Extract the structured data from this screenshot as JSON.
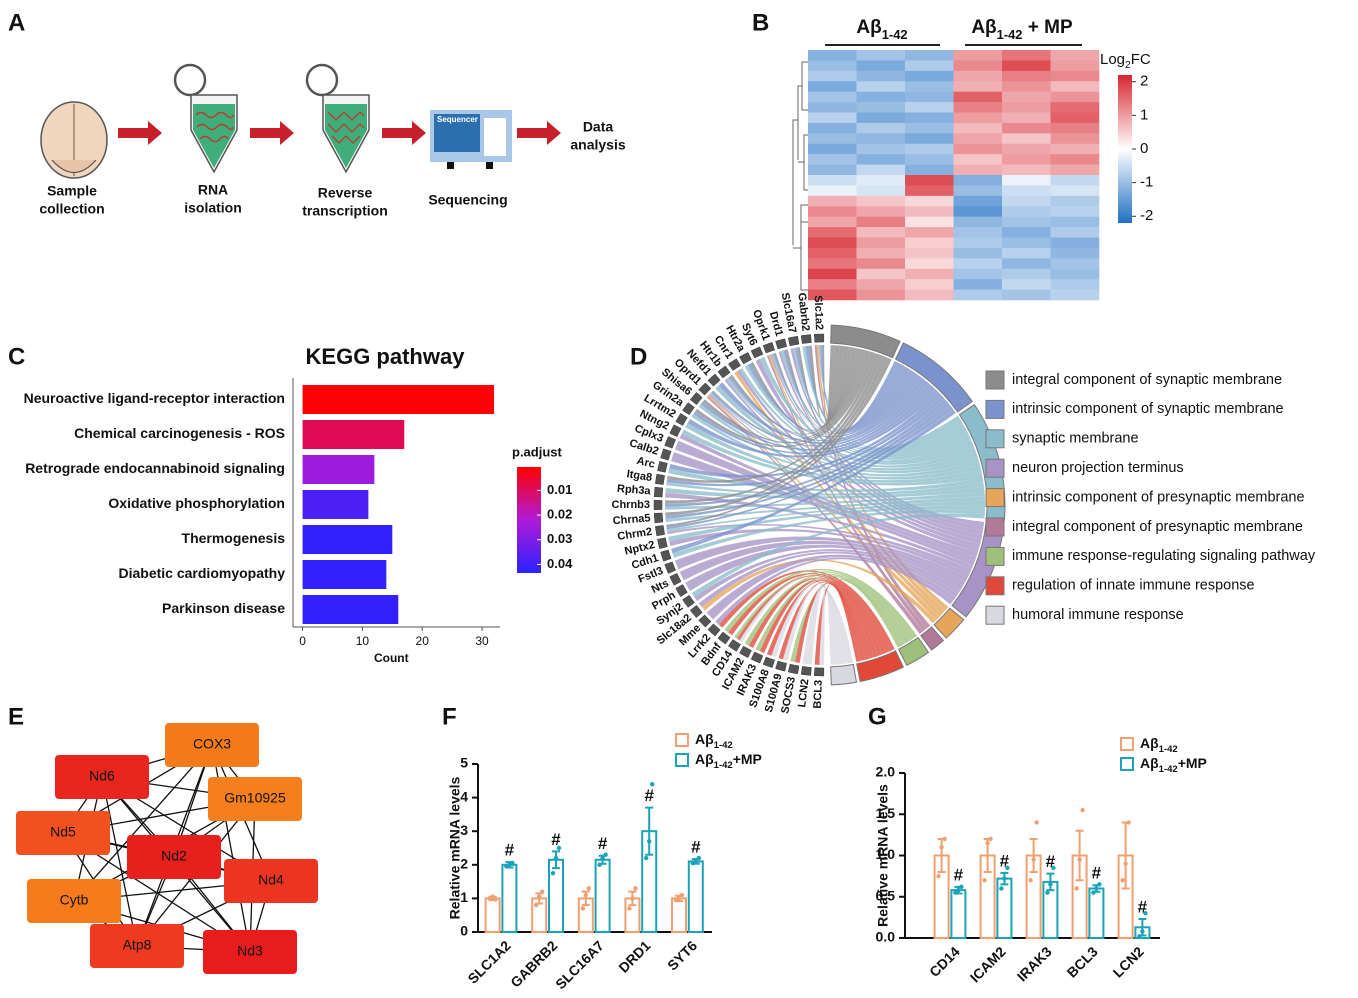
{
  "panel_labels": [
    "A",
    "B",
    "C",
    "D",
    "E",
    "F",
    "G"
  ],
  "workflow": {
    "steps": [
      {
        "lines": [
          "Sample",
          "collection"
        ]
      },
      {
        "lines": [
          "RNA",
          "isolation"
        ]
      },
      {
        "lines": [
          "Reverse",
          "transcription"
        ]
      },
      {
        "lines": [
          "Sequencing"
        ]
      },
      {
        "lines": [
          "Data",
          "analysis"
        ]
      }
    ],
    "device_label": "Sequencer"
  },
  "heatmap": {
    "groups": [
      {
        "main": "Aβ",
        "sub": "1-42"
      },
      {
        "main": "Aβ",
        "sub": "1-42",
        "suffix": " + MP"
      }
    ],
    "colorbar_label": {
      "main": "Log",
      "sub": "2",
      "suffix": "FC"
    },
    "clim": [
      -2.2,
      2.2
    ],
    "ticks": [
      2,
      1,
      0,
      -1,
      -2
    ],
    "colors": [
      "#1f6fc4",
      "#ffffff",
      "#d7262e"
    ],
    "rows": [
      [
        -1.2,
        -0.9,
        -1.1,
        1.0,
        1.4,
        0.9
      ],
      [
        -1.0,
        -1.3,
        -0.8,
        1.2,
        1.8,
        1.0
      ],
      [
        -0.8,
        -1.1,
        -1.3,
        0.9,
        1.3,
        1.2
      ],
      [
        -1.3,
        -0.7,
        -1.0,
        0.8,
        1.1,
        0.7
      ],
      [
        -0.9,
        -1.2,
        -1.1,
        1.6,
        0.9,
        1.1
      ],
      [
        -1.1,
        -1.0,
        -0.7,
        1.3,
        1.0,
        1.5
      ],
      [
        -0.7,
        -1.3,
        -1.2,
        1.0,
        0.8,
        1.6
      ],
      [
        -1.2,
        -0.8,
        -1.0,
        0.7,
        1.2,
        1.3
      ],
      [
        -1.0,
        -1.1,
        -1.3,
        0.9,
        0.6,
        1.1
      ],
      [
        -1.3,
        -0.9,
        -0.8,
        1.1,
        0.9,
        0.8
      ],
      [
        -0.9,
        -1.2,
        -1.0,
        0.6,
        1.0,
        1.2
      ],
      [
        -1.1,
        -0.6,
        -1.2,
        0.8,
        0.7,
        0.9
      ],
      [
        -0.5,
        -0.3,
        1.8,
        -1.2,
        -0.2,
        -0.6
      ],
      [
        -0.2,
        -0.4,
        1.6,
        -1.0,
        -0.5,
        -0.4
      ],
      [
        0.8,
        0.6,
        0.4,
        -1.4,
        -0.6,
        -0.8
      ],
      [
        1.2,
        0.9,
        0.7,
        -1.6,
        -0.8,
        -0.7
      ],
      [
        0.9,
        1.3,
        0.3,
        -1.1,
        -0.9,
        -1.0
      ],
      [
        1.5,
        0.7,
        0.9,
        -0.9,
        -1.2,
        -0.8
      ],
      [
        1.8,
        1.0,
        0.5,
        -0.8,
        -1.0,
        -1.2
      ],
      [
        1.6,
        0.8,
        0.6,
        -1.0,
        -0.7,
        -1.1
      ],
      [
        1.4,
        1.2,
        0.4,
        -0.7,
        -1.1,
        -0.9
      ],
      [
        1.9,
        0.6,
        0.8,
        -0.9,
        -0.8,
        -1.0
      ],
      [
        1.3,
        0.9,
        0.5,
        -1.2,
        -0.6,
        -0.8
      ],
      [
        1.7,
        1.1,
        0.7,
        -0.8,
        -0.9,
        -0.7
      ]
    ]
  },
  "chord": {
    "terms": [
      {
        "name": "integral component of synaptic membrane",
        "color": "#8c8c8c"
      },
      {
        "name": "intrinsic component of synaptic membrane",
        "color": "#7b93cc"
      },
      {
        "name": "synaptic membrane",
        "color": "#8bbccb"
      },
      {
        "name": "neuron projection terminus",
        "color": "#a793c6"
      },
      {
        "name": "intrinsic component of presynaptic membrane",
        "color": "#e5a55a"
      },
      {
        "name": "integral component of presynaptic membrane",
        "color": "#b07a98"
      },
      {
        "name": "immune response-regulating signaling pathway",
        "color": "#9ec07a"
      },
      {
        "name": "regulation of innate immune response",
        "color": "#e0483a"
      },
      {
        "name": "humoral immune response",
        "color": "#d8d8e0"
      }
    ],
    "genes": [
      {
        "name": "Slc1a2",
        "terms": [
          0,
          1,
          2,
          4,
          5
        ]
      },
      {
        "name": "Gabrb2",
        "terms": [
          0,
          1,
          2
        ]
      },
      {
        "name": "Slc16a7",
        "terms": [
          0,
          1,
          2,
          3
        ]
      },
      {
        "name": "Drd1",
        "terms": [
          0,
          1,
          2,
          3
        ]
      },
      {
        "name": "Oprk1",
        "terms": [
          0,
          1,
          2,
          3,
          4,
          5
        ]
      },
      {
        "name": "Syt6",
        "terms": [
          2,
          3
        ]
      },
      {
        "name": "Htr2a",
        "terms": [
          0,
          1,
          2
        ]
      },
      {
        "name": "Cnr1",
        "terms": [
          2,
          3,
          4
        ]
      },
      {
        "name": "Htr1b",
        "terms": [
          0,
          1,
          2,
          3
        ]
      },
      {
        "name": "Nefd1",
        "terms": [
          1,
          2
        ]
      },
      {
        "name": "Oprd1",
        "terms": [
          0,
          1,
          2,
          3,
          4,
          5
        ]
      },
      {
        "name": "Shisa6",
        "terms": [
          0,
          1,
          2
        ]
      },
      {
        "name": "Grin2a",
        "terms": [
          0,
          1,
          2
        ]
      },
      {
        "name": "Lrrtm2",
        "terms": [
          1,
          2
        ]
      },
      {
        "name": "Ntng2",
        "terms": [
          2,
          3
        ]
      },
      {
        "name": "Cplx3",
        "terms": [
          3
        ]
      },
      {
        "name": "Calb2",
        "terms": [
          3
        ]
      },
      {
        "name": "Arc",
        "terms": [
          1,
          2
        ]
      },
      {
        "name": "Itga8",
        "terms": [
          0,
          1,
          2
        ]
      },
      {
        "name": "Rph3a",
        "terms": [
          2,
          3
        ]
      },
      {
        "name": "Chrnb3",
        "terms": [
          0,
          1,
          2
        ]
      },
      {
        "name": "Chrna5",
        "terms": [
          0,
          1,
          2
        ]
      },
      {
        "name": "Chrm2",
        "terms": [
          0,
          1,
          2,
          3
        ]
      },
      {
        "name": "Nptx2",
        "terms": [
          2,
          3
        ]
      },
      {
        "name": "Cdh1",
        "terms": [
          1,
          2
        ]
      },
      {
        "name": "Fstl3",
        "terms": [
          3
        ]
      },
      {
        "name": "Nts",
        "terms": [
          3
        ]
      },
      {
        "name": "Prph",
        "terms": [
          3
        ]
      },
      {
        "name": "Synj2",
        "terms": [
          2,
          3
        ]
      },
      {
        "name": "Slc18a2",
        "terms": [
          3,
          4
        ]
      },
      {
        "name": "Mme",
        "terms": [
          3
        ]
      },
      {
        "name": "Lrrk2",
        "terms": [
          3,
          7
        ]
      },
      {
        "name": "Bdnf",
        "terms": [
          6,
          7
        ]
      },
      {
        "name": "CD14",
        "terms": [
          6,
          7,
          8
        ]
      },
      {
        "name": "ICAM2",
        "terms": [
          6,
          7
        ]
      },
      {
        "name": "IRAK3",
        "terms": [
          6,
          7
        ]
      },
      {
        "name": "S100A8",
        "terms": [
          7,
          8
        ]
      },
      {
        "name": "S100A9",
        "terms": [
          7,
          8
        ]
      },
      {
        "name": "SOCS3",
        "terms": [
          6,
          7
        ]
      },
      {
        "name": "LCN2",
        "terms": [
          8
        ]
      },
      {
        "name": "BCL3",
        "terms": [
          7,
          8
        ]
      }
    ]
  },
  "network": {
    "nodes": [
      {
        "label": "COX3",
        "color": "#f57a1a"
      },
      {
        "label": "Nd6",
        "color": "#e8261e"
      },
      {
        "label": "Gm10925",
        "color": "#f57f1c"
      },
      {
        "label": "Nd5",
        "color": "#f2501e"
      },
      {
        "label": "Nd2",
        "color": "#e8201c"
      },
      {
        "label": "Nd4",
        "color": "#ec3520"
      },
      {
        "label": "Cytb",
        "color": "#f77b1b"
      },
      {
        "label": "Atp8",
        "color": "#ee3a20"
      },
      {
        "label": "Nd3",
        "color": "#e81c1c"
      }
    ],
    "edges": [
      [
        0,
        1
      ],
      [
        0,
        2
      ],
      [
        0,
        3
      ],
      [
        0,
        4
      ],
      [
        0,
        5
      ],
      [
        0,
        6
      ],
      [
        0,
        7
      ],
      [
        0,
        8
      ],
      [
        1,
        2
      ],
      [
        1,
        3
      ],
      [
        1,
        4
      ],
      [
        1,
        5
      ],
      [
        1,
        6
      ],
      [
        1,
        7
      ],
      [
        1,
        8
      ],
      [
        2,
        3
      ],
      [
        2,
        4
      ],
      [
        2,
        6
      ],
      [
        2,
        7
      ],
      [
        2,
        8
      ],
      [
        3,
        4
      ],
      [
        3,
        5
      ],
      [
        3,
        7
      ],
      [
        3,
        8
      ],
      [
        4,
        5
      ],
      [
        4,
        6
      ],
      [
        4,
        7
      ],
      [
        4,
        8
      ],
      [
        5,
        6
      ],
      [
        5,
        7
      ],
      [
        5,
        8
      ],
      [
        6,
        7
      ],
      [
        6,
        8
      ],
      [
        7,
        8
      ]
    ]
  },
  "chart_data": [
    {
      "type": "barh",
      "title": "KEGG pathway",
      "xlabel": "Count",
      "categories": [
        "Neuroactive ligand-receptor interaction",
        "Chemical carcinogenesis - ROS",
        "Retrograde endocannabinoid signaling",
        "Oxidative phosphorylation",
        "Thermogenesis",
        "Diabetic cardiomyopathy",
        "Parkinson disease"
      ],
      "values": [
        32,
        17,
        12,
        11,
        15,
        14,
        16
      ],
      "p_adjust": [
        0.001,
        0.009,
        0.025,
        0.038,
        0.042,
        0.042,
        0.042
      ],
      "xlim": [
        -1.6,
        33
      ],
      "xticks": [
        0,
        10,
        20,
        30
      ],
      "colorbar": {
        "title": "p.adjust",
        "lim": [
          0.0005,
          0.0435
        ],
        "ticks": [
          0.01,
          0.02,
          0.03,
          0.04
        ],
        "colors": [
          "#ff0000",
          "#b01ad8",
          "#2a22ff"
        ]
      }
    },
    {
      "type": "bar",
      "ylabel": "Relative mRNA levels",
      "categories": [
        "SLC1A2",
        "GABRB2",
        "SLC16A7",
        "DRD1",
        "SYT6"
      ],
      "series": [
        {
          "name": "Aβ",
          "name_sub": "1-42",
          "color": "#f0a070",
          "values": [
            1.0,
            1.0,
            1.0,
            1.0,
            1.0
          ],
          "errors": [
            0.05,
            0.15,
            0.2,
            0.2,
            0.08
          ],
          "points": [
            [
              1.0,
              1.05,
              0.97
            ],
            [
              0.8,
              1.05,
              1.2
            ],
            [
              0.7,
              1.1,
              1.3
            ],
            [
              0.7,
              1.0,
              1.3
            ],
            [
              0.95,
              1.0,
              1.1
            ]
          ]
        },
        {
          "name": "Aβ",
          "name_sub": "1-42",
          "name_suffix": "+MP",
          "color": "#1aa3b8",
          "values": [
            2.0,
            2.15,
            2.15,
            3.0,
            2.1
          ],
          "errors": [
            0.08,
            0.25,
            0.12,
            0.7,
            0.07
          ],
          "points": [
            [
              1.95,
              2.0,
              2.05
            ],
            [
              1.75,
              2.2,
              2.5
            ],
            [
              2.0,
              2.2,
              2.3
            ],
            [
              2.2,
              2.7,
              4.4
            ],
            [
              2.05,
              2.1,
              2.2
            ]
          ]
        }
      ],
      "sig_labels": [
        "#",
        "#",
        "#",
        "#",
        "#"
      ],
      "ylim": [
        0,
        5
      ],
      "yticks": [
        0,
        1,
        2,
        3,
        4,
        5
      ]
    },
    {
      "type": "bar",
      "ylabel": "Relative mRNA levels",
      "categories": [
        "CD14",
        "ICAM2",
        "IRAK3",
        "BCL3",
        "LCN2"
      ],
      "series": [
        {
          "name": "Aβ",
          "name_sub": "1-42",
          "color": "#f0a070",
          "values": [
            1.0,
            1.0,
            1.0,
            1.0,
            1.0
          ],
          "errors": [
            0.2,
            0.2,
            0.2,
            0.3,
            0.4
          ],
          "points": [
            [
              0.75,
              1.1,
              1.2
            ],
            [
              0.7,
              1.15,
              1.2
            ],
            [
              0.7,
              0.95,
              1.4
            ],
            [
              0.6,
              0.95,
              1.55
            ],
            [
              0.7,
              0.9,
              1.4
            ]
          ]
        },
        {
          "name": "Aβ",
          "name_sub": "1-42",
          "name_suffix": "+MP",
          "color": "#1aa3b8",
          "values": [
            0.58,
            0.72,
            0.68,
            0.6,
            0.13
          ],
          "errors": [
            0.04,
            0.07,
            0.1,
            0.04,
            0.1
          ],
          "points": [
            [
              0.55,
              0.58,
              0.62
            ],
            [
              0.6,
              0.72,
              0.85
            ],
            [
              0.55,
              0.65,
              0.85
            ],
            [
              0.55,
              0.6,
              0.65
            ],
            [
              0.02,
              0.08,
              0.3
            ]
          ]
        }
      ],
      "sig_labels": [
        "#",
        "#",
        "#",
        "#",
        "#"
      ],
      "ylim": [
        0,
        2.0
      ],
      "yticks": [
        {
          "value": 0,
          "label": "0.0"
        },
        {
          "value": 0.5,
          "label": "0.5"
        },
        {
          "value": 1,
          "label": "1.0"
        },
        {
          "value": 1.5,
          "label": "1.5"
        },
        {
          "value": 2,
          "label": "2.0"
        }
      ]
    }
  ]
}
